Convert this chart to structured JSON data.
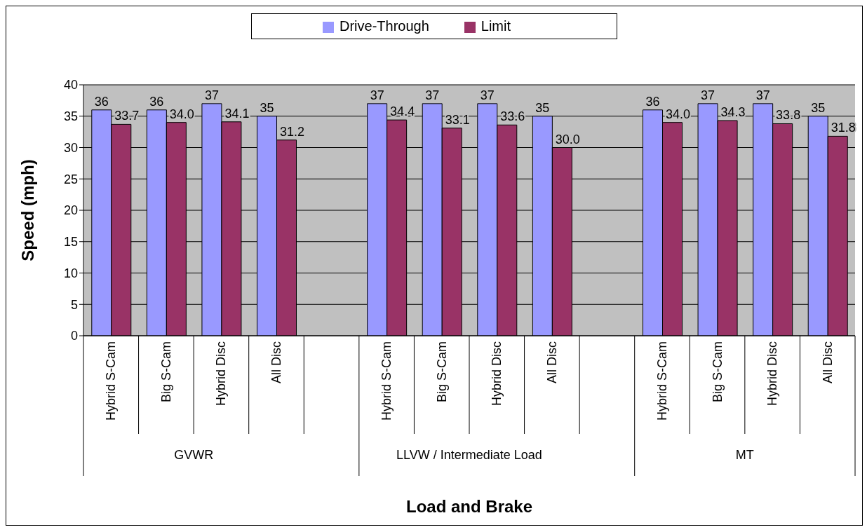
{
  "chart_data": {
    "type": "bar",
    "categories": [
      "Hybrid S-Cam",
      "Big S-Cam",
      "Hybrid Disc",
      "All Disc",
      null,
      "Hybrid S-Cam",
      "Big S-Cam",
      "Hybrid Disc",
      "All Disc",
      null,
      "Hybrid S-Cam",
      "Big S-Cam",
      "Hybrid Disc",
      "All Disc"
    ],
    "series": [
      {
        "name": "Drive-Through",
        "color": "#9999ff",
        "values": [
          36,
          36,
          37,
          35,
          null,
          37,
          37,
          37,
          35,
          null,
          36,
          37,
          37,
          35
        ],
        "value_labels": [
          "36",
          "36",
          "37",
          "35",
          null,
          "37",
          "37",
          "37",
          "35",
          null,
          "36",
          "37",
          "37",
          "35"
        ]
      },
      {
        "name": "Limit",
        "color": "#993366",
        "values": [
          33.7,
          34.0,
          34.1,
          31.2,
          null,
          34.4,
          33.1,
          33.6,
          30.0,
          null,
          34.0,
          34.3,
          33.8,
          31.8
        ],
        "value_labels": [
          "33.7",
          "34.0",
          "34.1",
          "31.2",
          null,
          "34.4",
          "33.1",
          "33.6",
          "30.0",
          null,
          "34.0",
          "34.3",
          "33.8",
          "31.8"
        ]
      }
    ],
    "annotations": [
      "GVWR",
      "LLVW / Intermediate Load",
      "MT"
    ],
    "xlabel": "Load and Brake",
    "ylabel": "Speed (mph)",
    "ylim": [
      0,
      40
    ],
    "yticks": [
      0,
      5,
      10,
      15,
      20,
      25,
      30,
      35,
      40
    ],
    "grid": "y",
    "legend": "top"
  }
}
